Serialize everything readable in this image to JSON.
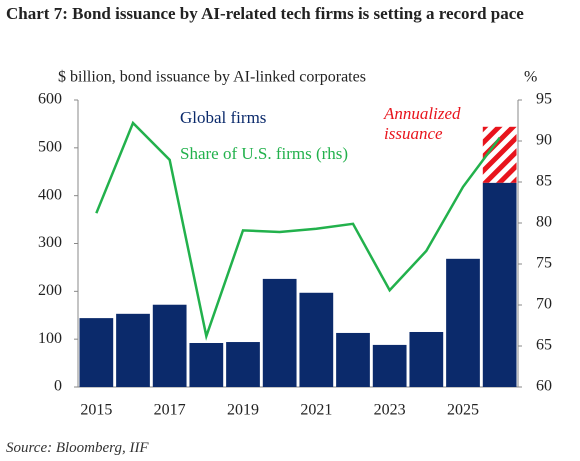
{
  "chart_data": {
    "type": "bar",
    "title": "Chart 7: Bond issuance by AI-related tech firms is setting a record pace",
    "ylabel": "$ billion, bond issuance by AI-linked corporates",
    "y2label": "%",
    "source": "Source: Bloomberg, IIF",
    "categories": [
      "2015",
      null,
      "2017",
      null,
      "2019",
      null,
      "2021",
      null,
      "2023",
      null,
      "2025",
      null
    ],
    "series": [
      {
        "name": "Global firms",
        "type": "bar",
        "color": "#0b2a6b",
        "values": [
          144,
          153,
          172,
          92,
          94,
          226,
          197,
          113,
          88,
          115,
          268,
          427
        ]
      },
      {
        "name": "Annualized issuance",
        "type": "stacked-hatch",
        "color": "#e8141c",
        "values": [
          null,
          null,
          null,
          null,
          null,
          null,
          null,
          null,
          null,
          null,
          null,
          117
        ]
      },
      {
        "name": "Share of U.S. firms (rhs)",
        "type": "line",
        "axis": "y2",
        "color": "#22b14c",
        "values": [
          81.2,
          92.2,
          87.7,
          66.2,
          79.1,
          78.9,
          79.3,
          79.9,
          71.8,
          76.6,
          84.4,
          90.4
        ]
      }
    ],
    "ylim": [
      0,
      600
    ],
    "yticks": [
      0,
      100,
      200,
      300,
      400,
      500,
      600
    ],
    "y2lim": [
      60,
      95
    ],
    "y2ticks": [
      60,
      65,
      70,
      75,
      80,
      85,
      90,
      95
    ]
  }
}
